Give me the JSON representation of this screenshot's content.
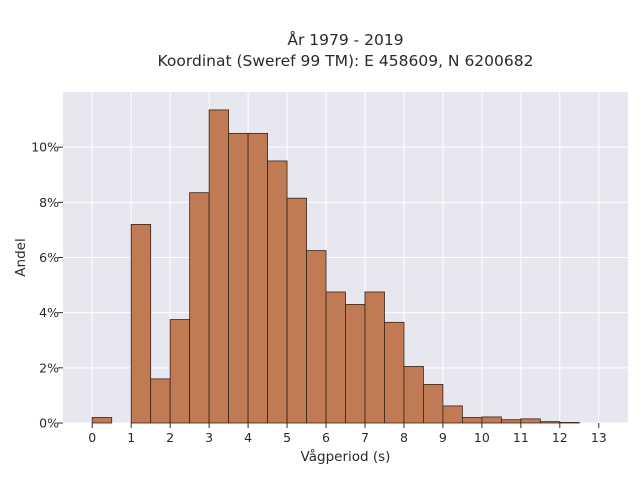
{
  "chart_data": {
    "type": "bar",
    "title_lines": [
      "År 1979 - 2019",
      "Koordinat (Sweref 99 TM): E 458609, N 6200682"
    ],
    "xlabel": "Vågperiod (s)",
    "ylabel": "Andel",
    "xlim": [
      -0.75,
      13.75
    ],
    "ylim": [
      0,
      12
    ],
    "x_ticks": [
      0,
      1,
      2,
      3,
      4,
      5,
      6,
      7,
      8,
      9,
      10,
      11,
      12,
      13
    ],
    "y_ticks": [
      0,
      2,
      4,
      6,
      8,
      10
    ],
    "y_tick_labels": [
      "0%",
      "2%",
      "4%",
      "6%",
      "8%",
      "10%"
    ],
    "bin_width": 0.5,
    "bin_starts": [
      0,
      0.5,
      1,
      1.5,
      2,
      2.5,
      3,
      3.5,
      4,
      4.5,
      5,
      5.5,
      6,
      6.5,
      7,
      7.5,
      8,
      8.5,
      9,
      9.5,
      10,
      10.5,
      11,
      11.5,
      12,
      12.5
    ],
    "values": [
      0.2,
      0,
      7.2,
      1.6,
      3.75,
      8.35,
      11.35,
      10.5,
      10.5,
      9.5,
      8.15,
      6.25,
      4.75,
      4.3,
      4.75,
      3.65,
      2.05,
      1.4,
      0.62,
      0.2,
      0.22,
      0.12,
      0.15,
      0.05,
      0.02,
      0
    ],
    "bar_color": "#c07a54",
    "bar_edge_color": "#3a2418",
    "background_color": "#e7e7f0",
    "grid": true
  }
}
